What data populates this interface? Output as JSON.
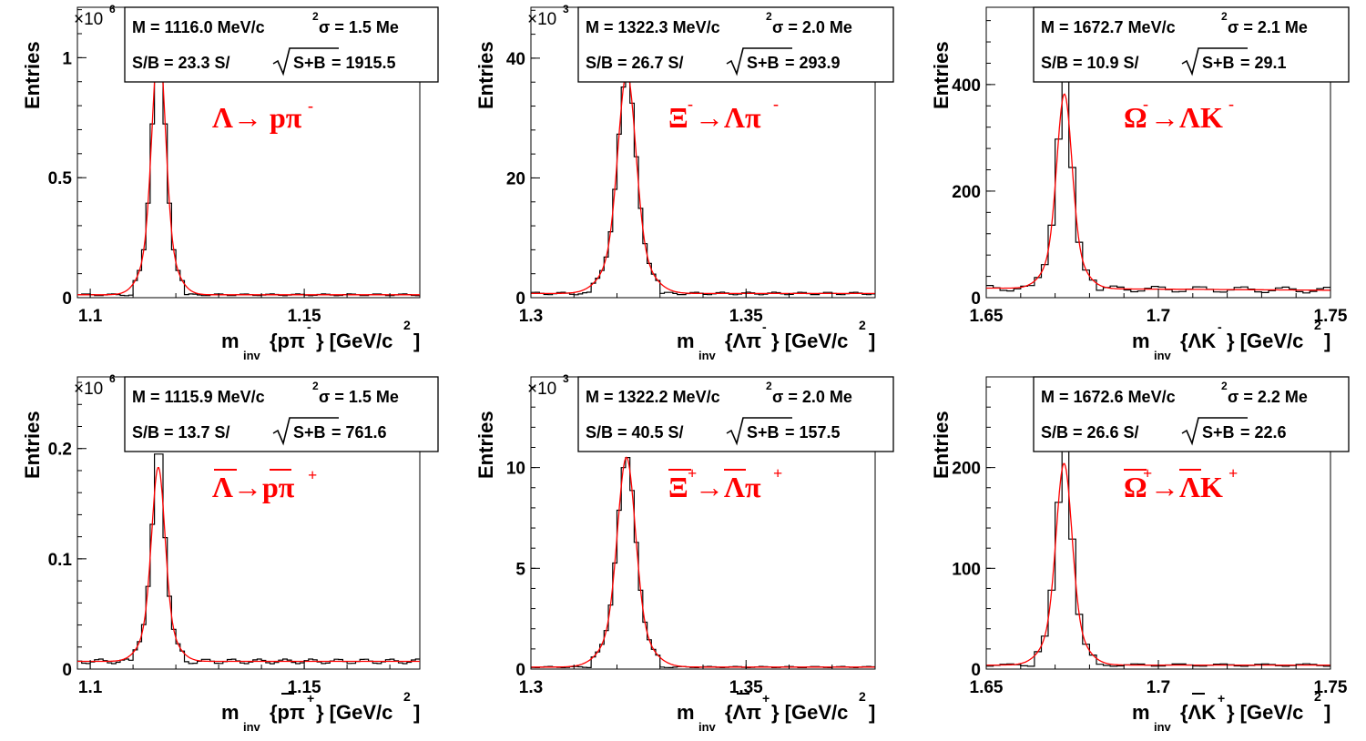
{
  "chart_data": [
    {
      "type": "histogram",
      "ylabel": "Entries",
      "xlabel": "m",
      "xlabel_sub": "inv",
      "xlabel_rest": "{pπ",
      "xlabel_sup": "-",
      "xlabel_unit": "} [GeV/c",
      "xlabel_unit_sup": "2",
      "xlabel_close": "]",
      "xlabel_bar": "",
      "y_multiplier": "×10",
      "y_multiplier_exp": "6",
      "xlim": [
        1.097,
        1.177
      ],
      "ylim": [
        0,
        1.21
      ],
      "xticks": [
        1.1,
        1.15
      ],
      "xtick_labels": [
        "1.1",
        "1.15"
      ],
      "yticks": [
        0,
        0.5,
        1
      ],
      "ytick_labels": [
        "0",
        "0.5",
        "1"
      ],
      "decay": [
        "Λ→ pπ",
        "-"
      ],
      "decay_bars": [],
      "stats": {
        "line1_a": "M = 1116.0 MeV/c",
        "line1_sup": "2",
        "line1_b": " σ = 1.5 Me",
        "line2_a": "S/B = 23.3   S/",
        "line2_b": "S+B",
        "line2_c": " = 1915.5"
      },
      "peak": {
        "mean": 1.116,
        "sigma": 0.0015,
        "amplitude": 1.06,
        "background": 0.012,
        "slope": 0
      },
      "bin_width": 0.001,
      "hist_peak": 1.14
    },
    {
      "type": "histogram",
      "ylabel": "Entries",
      "xlabel": "m",
      "xlabel_sub": "inv",
      "xlabel_rest": "{Λπ",
      "xlabel_sup": "-",
      "xlabel_unit": "} [GeV/c",
      "xlabel_unit_sup": "2",
      "xlabel_close": "]",
      "xlabel_bar": "",
      "y_multiplier": "×10",
      "y_multiplier_exp": "3",
      "xlim": [
        1.3,
        1.38
      ],
      "ylim": [
        0,
        48.5
      ],
      "xticks": [
        1.3,
        1.35
      ],
      "xtick_labels": [
        "1.3",
        "1.35"
      ],
      "yticks": [
        0,
        20,
        40
      ],
      "ytick_labels": [
        "0",
        "20",
        "40"
      ],
      "decay": [
        "Ξ",
        "-",
        "→Λπ",
        "-"
      ],
      "decay_bars": [],
      "stats": {
        "line1_a": "M = 1322.3 MeV/c",
        "line1_sup": "2",
        "line1_b": " σ = 2.0 Me",
        "line2_a": "S/B = 26.7   S/",
        "line2_b": "S+B",
        "line2_c": " = 293.9"
      },
      "peak": {
        "mean": 1.3223,
        "sigma": 0.002,
        "amplitude": 36.8,
        "background": 0.7,
        "slope": 0
      },
      "bin_width": 0.001,
      "hist_peak": 37.2
    },
    {
      "type": "histogram",
      "ylabel": "Entries",
      "xlabel": "m",
      "xlabel_sub": "inv",
      "xlabel_rest": "{ΛK",
      "xlabel_sup": "-",
      "xlabel_unit": "} [GeV/c",
      "xlabel_unit_sup": "2",
      "xlabel_close": "]",
      "xlabel_bar": "",
      "y_multiplier": "",
      "y_multiplier_exp": "",
      "xlim": [
        1.65,
        1.75
      ],
      "ylim": [
        0,
        545
      ],
      "xticks": [
        1.65,
        1.7,
        1.75
      ],
      "xtick_labels": [
        "1.65",
        "1.7",
        "1.75"
      ],
      "yticks": [
        0,
        200,
        400
      ],
      "ytick_labels": [
        "0",
        "200",
        "400"
      ],
      "decay": [
        "Ω",
        "-",
        "→ΛK",
        "-"
      ],
      "decay_bars": [],
      "stats": {
        "line1_a": "M = 1672.7 MeV/c",
        "line1_sup": "2",
        "line1_b": " σ = 2.1 Me",
        "line2_a": "S/B = 10.9   S/",
        "line2_b": "S+B",
        "line2_c": " = 29.1"
      },
      "peak": {
        "mean": 1.6727,
        "sigma": 0.0021,
        "amplitude": 365,
        "background": 18,
        "slope": -40
      },
      "bin_width": 0.002,
      "hist_peak": 408
    },
    {
      "type": "histogram",
      "ylabel": "Entries",
      "xlabel": "m",
      "xlabel_sub": "inv",
      "xlabel_rest": "{pπ",
      "xlabel_sup": "+",
      "xlabel_unit": "} [GeV/c",
      "xlabel_unit_sup": "2",
      "xlabel_close": "]",
      "xlabel_bar": "p",
      "y_multiplier": "×10",
      "y_multiplier_exp": "6",
      "xlim": [
        1.097,
        1.177
      ],
      "ylim": [
        0,
        0.265
      ],
      "xticks": [
        1.1,
        1.15
      ],
      "xtick_labels": [
        "1.1",
        "1.15"
      ],
      "yticks": [
        0,
        0.1,
        0.2
      ],
      "ytick_labels": [
        "0",
        "0.1",
        "0.2"
      ],
      "decay": [
        "Λ→pπ",
        "+"
      ],
      "decay_bars": [
        "Λ",
        "p"
      ],
      "stats": {
        "line1_a": "M = 1115.9 MeV/c",
        "line1_sup": "2",
        "line1_b": " σ = 1.5 Me",
        "line2_a": "S/B = 13.7   S/",
        "line2_b": "S+B",
        "line2_c": " = 761.6"
      },
      "peak": {
        "mean": 1.1159,
        "sigma": 0.0015,
        "amplitude": 0.176,
        "background": 0.007,
        "slope": 0
      },
      "bin_width": 0.001,
      "hist_peak": 0.195
    },
    {
      "type": "histogram",
      "ylabel": "Entries",
      "xlabel": "m",
      "xlabel_sub": "inv",
      "xlabel_rest": "{Λπ",
      "xlabel_sup": "+",
      "xlabel_unit": "} [GeV/c",
      "xlabel_unit_sup": "2",
      "xlabel_close": "]",
      "xlabel_bar": "Λ",
      "y_multiplier": "×10",
      "y_multiplier_exp": "3",
      "xlim": [
        1.3,
        1.38
      ],
      "ylim": [
        0,
        14.5
      ],
      "xticks": [
        1.3,
        1.35
      ],
      "xtick_labels": [
        "1.3",
        "1.35"
      ],
      "yticks": [
        0,
        5,
        10
      ],
      "ytick_labels": [
        "0",
        "5",
        "10"
      ],
      "decay": [
        "Ξ",
        "+",
        "→Λπ",
        "+"
      ],
      "decay_bars": [
        "Ξ",
        "Λ"
      ],
      "stats": {
        "line1_a": "M = 1322.2 MeV/c",
        "line1_sup": "2",
        "line1_b": " σ = 2.0 Me",
        "line2_a": "S/B = 40.5   S/",
        "line2_b": "S+B",
        "line2_c": " = 157.5"
      },
      "peak": {
        "mean": 1.3222,
        "sigma": 0.002,
        "amplitude": 10.4,
        "background": 0.1,
        "slope": 0
      },
      "bin_width": 0.001,
      "hist_peak": 10.5
    },
    {
      "type": "histogram",
      "ylabel": "Entries",
      "xlabel": "m",
      "xlabel_sub": "inv",
      "xlabel_rest": "{ΛK",
      "xlabel_sup": "+",
      "xlabel_unit": "} [GeV/c",
      "xlabel_unit_sup": "2",
      "xlabel_close": "]",
      "xlabel_bar": "Λ",
      "y_multiplier": "",
      "y_multiplier_exp": "",
      "xlim": [
        1.65,
        1.75
      ],
      "ylim": [
        0,
        290
      ],
      "xticks": [
        1.65,
        1.7,
        1.75
      ],
      "xtick_labels": [
        "1.65",
        "1.7",
        "1.75"
      ],
      "yticks": [
        0,
        100,
        200
      ],
      "ytick_labels": [
        "0",
        "100",
        "200"
      ],
      "decay": [
        "Ω",
        "+",
        "→ΛK",
        "+"
      ],
      "decay_bars": [
        "Ω",
        "Λ"
      ],
      "stats": {
        "line1_a": "M = 1672.6 MeV/c",
        "line1_sup": "2",
        "line1_b": " σ = 2.2 Me",
        "line2_a": "S/B = 26.6   S/",
        "line2_b": "S+B",
        "line2_c": " = 22.6"
      },
      "peak": {
        "mean": 1.6726,
        "sigma": 0.0022,
        "amplitude": 200,
        "background": 4,
        "slope": 0
      },
      "bin_width": 0.002,
      "hist_peak": 221
    }
  ],
  "colors": {
    "histogram": "#000000",
    "fit": "#ff0000",
    "decay_label": "#ff0000",
    "frame": "#000000"
  }
}
